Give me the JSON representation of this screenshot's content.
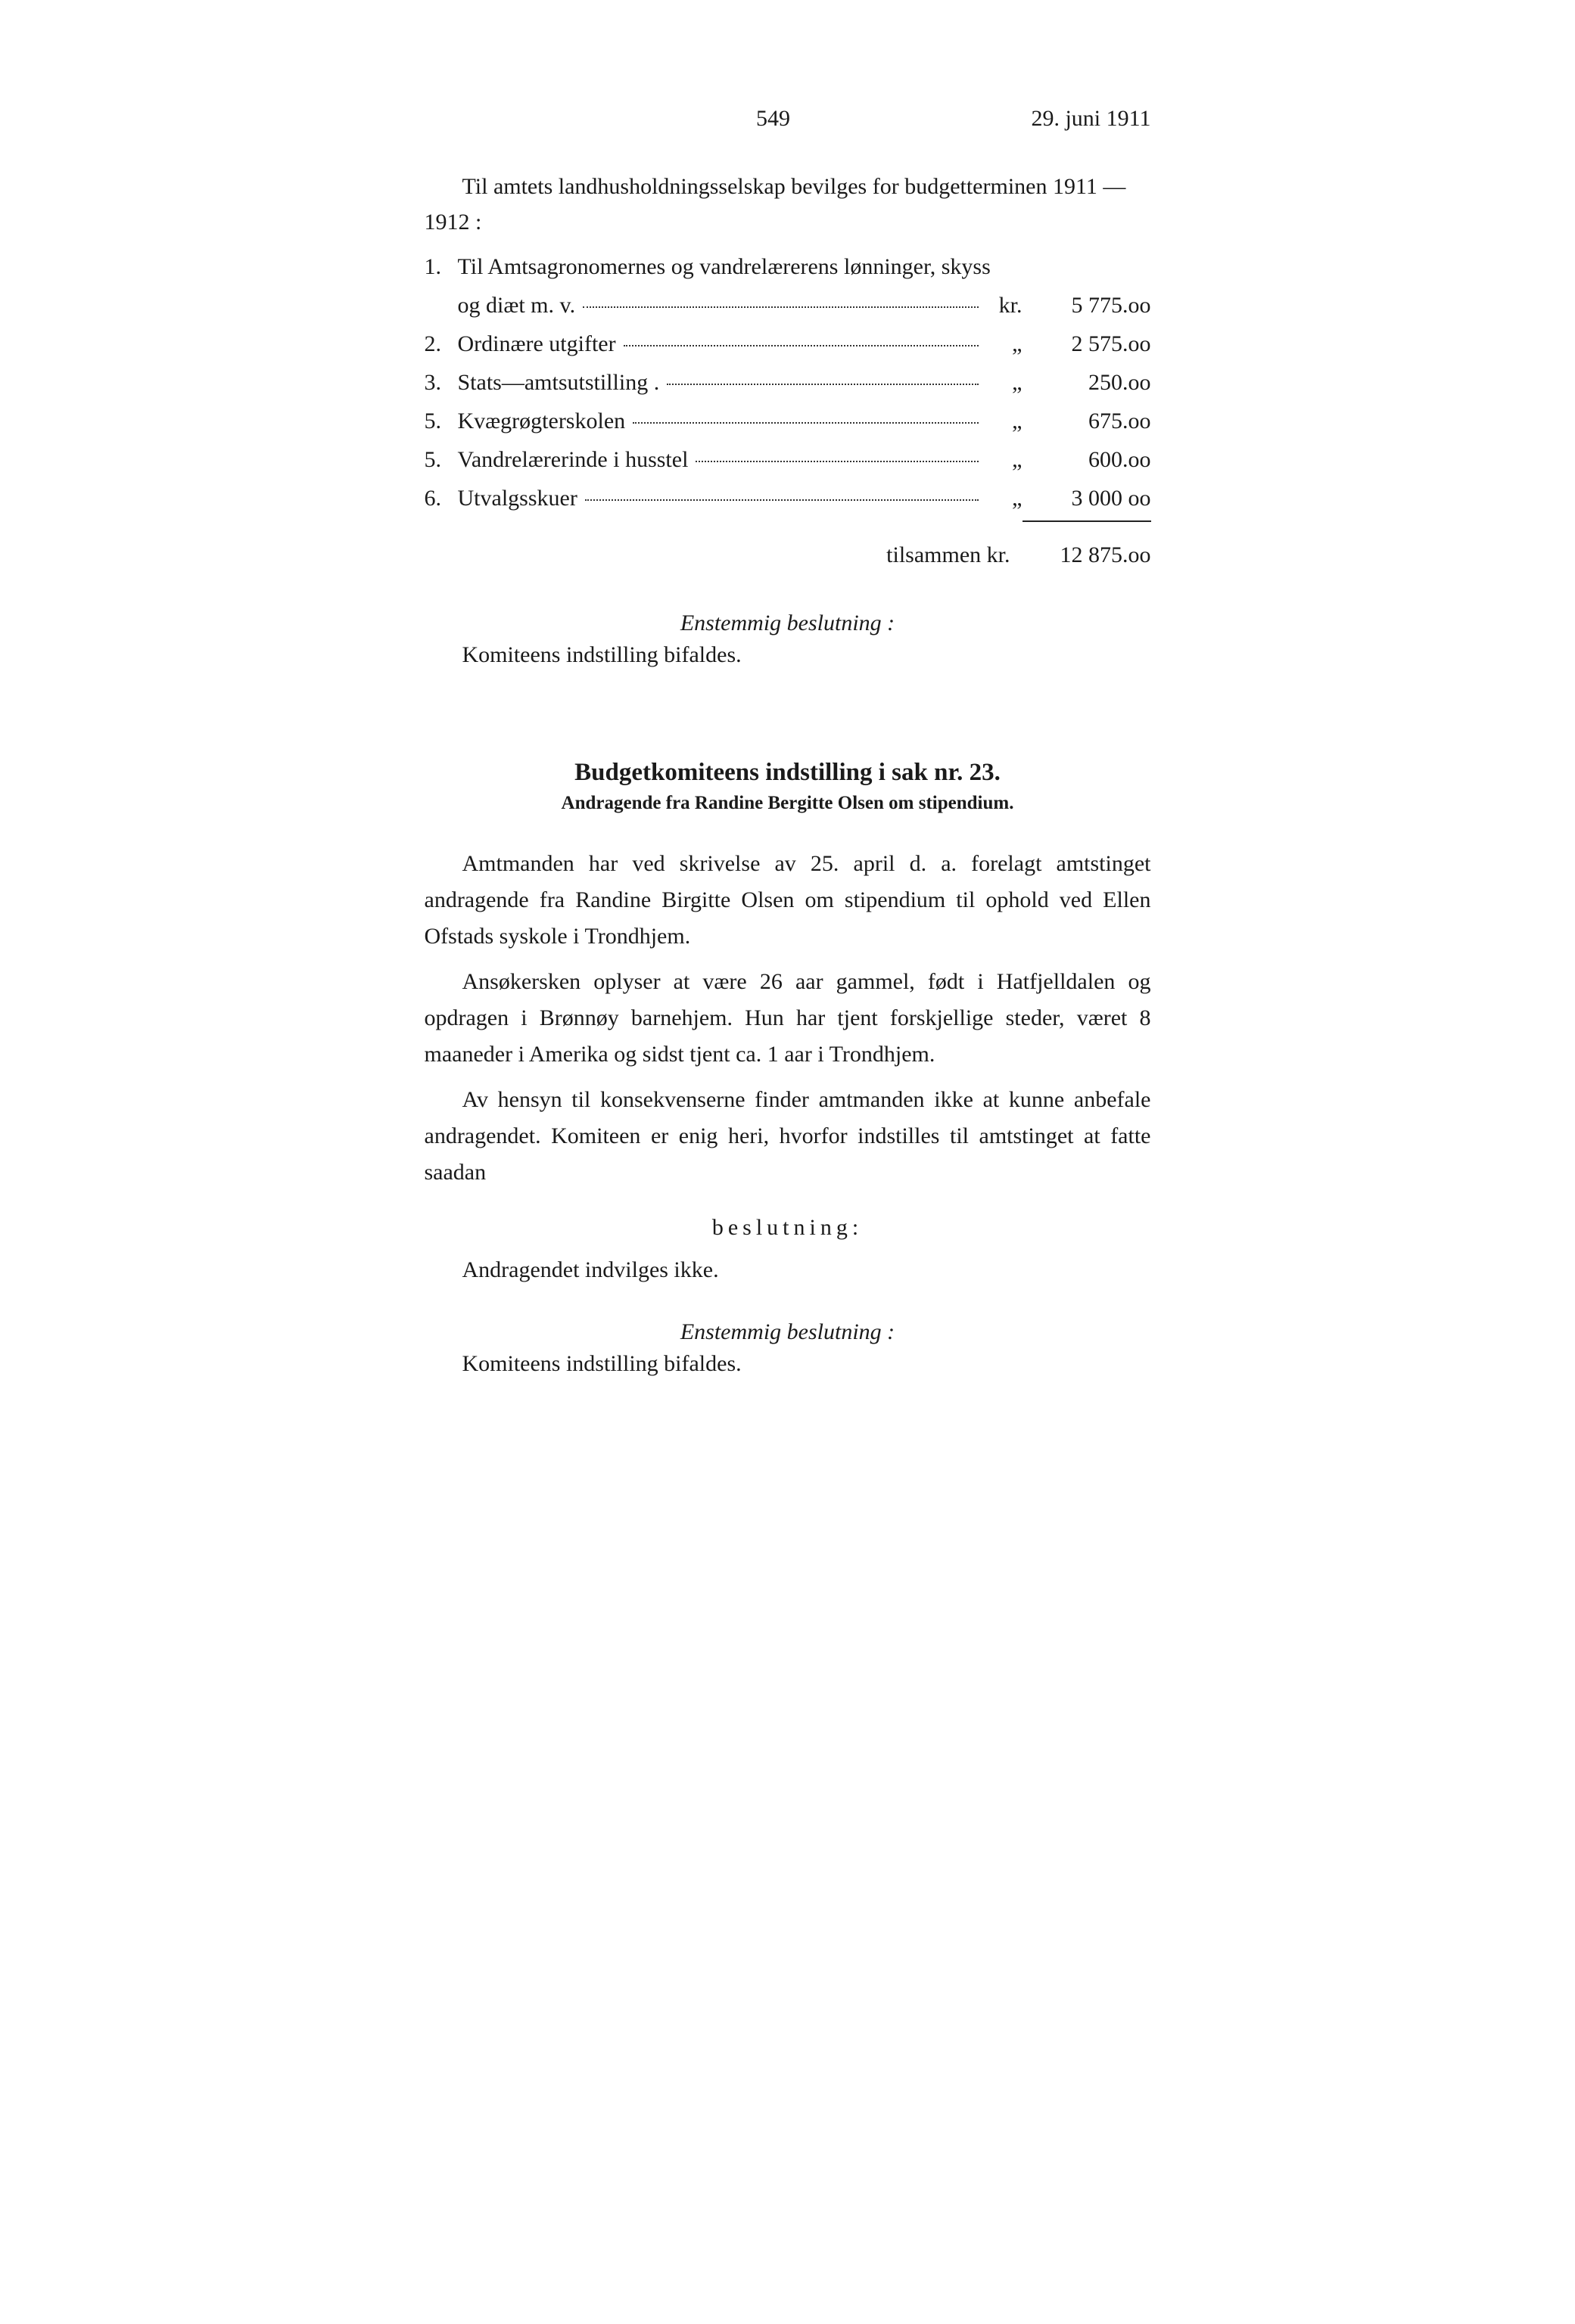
{
  "header": {
    "page_number": "549",
    "date": "29. juni 1911"
  },
  "intro": "Til amtets landhusholdningsselskap bevilges for budgetterminen 1911 —1912 :",
  "budget": {
    "items": [
      {
        "num": "1.",
        "label_line1": "Til Amtsagronomernes og vandrelærerens lønninger, skyss",
        "label_line2": "og diæt m. v.",
        "unit": "kr.",
        "amount": "5 775.oo"
      },
      {
        "num": "2.",
        "label": "Ordinære utgifter",
        "unit": "„",
        "amount": "2 575.oo"
      },
      {
        "num": "3.",
        "label": "Stats—amtsutstilling .",
        "unit": "„",
        "amount": "250.oo"
      },
      {
        "num": "5.",
        "label": "Kvægrøgterskolen",
        "unit": "„",
        "amount": "675.oo"
      },
      {
        "num": "5.",
        "label": "Vandrelærerinde i husstel",
        "unit": "„",
        "amount": "600.oo"
      },
      {
        "num": "6.",
        "label": "Utvalgsskuer",
        "unit": "„",
        "amount": "3 000 oo"
      }
    ],
    "total_label": "tilsammen kr.",
    "total_amount": "12 875.oo"
  },
  "resolution1": {
    "heading": "Enstemmig beslutning :",
    "text": "Komiteens indstilling bifaldes."
  },
  "sak23": {
    "title": "Budgetkomiteens indstilling i sak nr. 23.",
    "subtitle": "Andragende fra Randine Bergitte Olsen om stipendium.",
    "p1": "Amtmanden har ved skrivelse av 25. april d. a. forelagt amtstinget andragende fra Randine Birgitte Olsen om stipendium til ophold ved Ellen Ofstads syskole i Trondhjem.",
    "p2": "Ansøkersken oplyser at være 26 aar gammel, født i Hatfjelldalen og opdragen i Brønnøy barnehjem. Hun har tjent forskjellige steder, været 8 maaneder i Amerika og sidst tjent ca. 1 aar i Trondhjem.",
    "p3": "Av hensyn til konsekvenserne finder amtmanden ikke at kunne anbefale andragendet. Komiteen er enig heri, hvorfor indstilles til amtstinget at fatte saadan",
    "beslutning_word": "beslutning:",
    "decision": "Andragendet indvilges ikke.",
    "resolution_heading": "Enstemmig beslutning :",
    "resolution_text": "Komiteens indstilling bifaldes."
  }
}
